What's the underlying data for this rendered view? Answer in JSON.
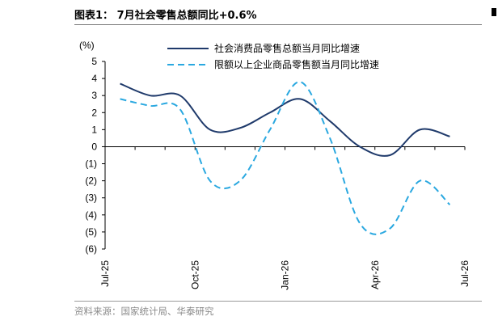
{
  "title": "图表1： 7月社会零售总额同比+0.6%",
  "source": "资料来源：国家统计局、华泰研究",
  "chart_data": {
    "type": "line",
    "ylabel": "(%)",
    "ylim": [
      -6,
      5
    ],
    "yticks": [
      5,
      4,
      3,
      2,
      1,
      0,
      -1,
      -2,
      -3,
      -4,
      -5,
      -6
    ],
    "ytick_labels": [
      "5",
      "4",
      "3",
      "2",
      "1",
      "0",
      "(1)",
      "(2)",
      "(3)",
      "(4)",
      "(5)",
      "(6)"
    ],
    "x_tick_labels": [
      "Jul-25",
      "Oct-25",
      "Jan-26",
      "Apr-26",
      "Jul-26"
    ],
    "x_tick_index": [
      0,
      3,
      6,
      9,
      12
    ],
    "legend_position": "top-right",
    "grid": false,
    "series": [
      {
        "name": "社会消费品零售总额当月同比增速",
        "color": "#1f3a6b",
        "style": "solid",
        "values": [
          3.7,
          3.0,
          3.0,
          1.0,
          1.1,
          2.0,
          2.8,
          1.5,
          0.0,
          -0.5,
          1.0,
          0.6
        ]
      },
      {
        "name": "限额以上企业商品零售额当月同比增速",
        "color": "#2aa8e0",
        "style": "dashed",
        "values": [
          2.8,
          2.4,
          2.2,
          -2.0,
          -2.0,
          1.0,
          3.8,
          0.5,
          -4.5,
          -4.8,
          -2.0,
          -3.4
        ]
      }
    ]
  }
}
